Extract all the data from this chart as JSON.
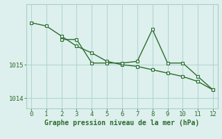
{
  "line1_x": [
    0,
    1,
    2,
    3,
    4,
    5,
    6,
    7,
    8,
    9,
    10,
    11,
    12
  ],
  "line1_y": [
    1016.25,
    1016.15,
    1015.85,
    1015.55,
    1015.35,
    1015.1,
    1015.0,
    1014.95,
    1014.85,
    1014.75,
    1014.65,
    1014.5,
    1014.25
  ],
  "line2_x": [
    2,
    3,
    4,
    5,
    6,
    7,
    8,
    9,
    10,
    11,
    12
  ],
  "line2_y": [
    1015.75,
    1015.75,
    1015.05,
    1015.05,
    1015.05,
    1015.1,
    1016.05,
    1015.05,
    1015.05,
    1014.65,
    1014.25
  ],
  "line_color": "#2d6b2d",
  "bg_color": "#ddf0ed",
  "grid_color": "#a8cec8",
  "xlabel": "Graphe pression niveau de la mer (hPa)",
  "xlim": [
    -0.3,
    12.3
  ],
  "ylim": [
    1013.7,
    1016.8
  ],
  "yticks": [
    1014,
    1015
  ],
  "xticks": [
    0,
    1,
    2,
    3,
    4,
    5,
    6,
    7,
    8,
    9,
    10,
    11,
    12
  ],
  "marker": "s",
  "markersize": 2.8,
  "linewidth": 1.0,
  "xlabel_fontsize": 7.0,
  "tick_fontsize": 6.5
}
